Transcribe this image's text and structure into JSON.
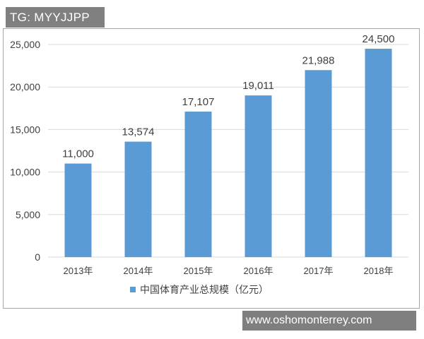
{
  "watermark_top": "TG: MYYJJPP",
  "watermark_bottom": "www.oshomonterrey.com",
  "colors": {
    "bar": "#5b9bd5",
    "grid": "#d9d9d9",
    "axis_text": "#404040"
  },
  "chart_data": {
    "type": "bar",
    "categories": [
      "2013年",
      "2014年",
      "2015年",
      "2016年",
      "2017年",
      "2018年"
    ],
    "values": [
      11000,
      13574,
      17107,
      19011,
      21988,
      24500
    ],
    "value_labels": [
      "11,000",
      "13,574",
      "17,107",
      "19,011",
      "21,988",
      "24,500"
    ],
    "series": [
      {
        "name": "中国体育产业总规模（亿元）",
        "values": [
          11000,
          13574,
          17107,
          19011,
          21988,
          24500
        ]
      }
    ],
    "title": "",
    "xlabel": "",
    "ylabel": "",
    "ylim": [
      0,
      25000
    ],
    "yticks": [
      0,
      5000,
      10000,
      15000,
      20000,
      25000
    ],
    "ytick_labels": [
      "0",
      "5,000",
      "10,000",
      "15,000",
      "20,000",
      "25,000"
    ],
    "grid": true,
    "legend_position": "bottom"
  }
}
